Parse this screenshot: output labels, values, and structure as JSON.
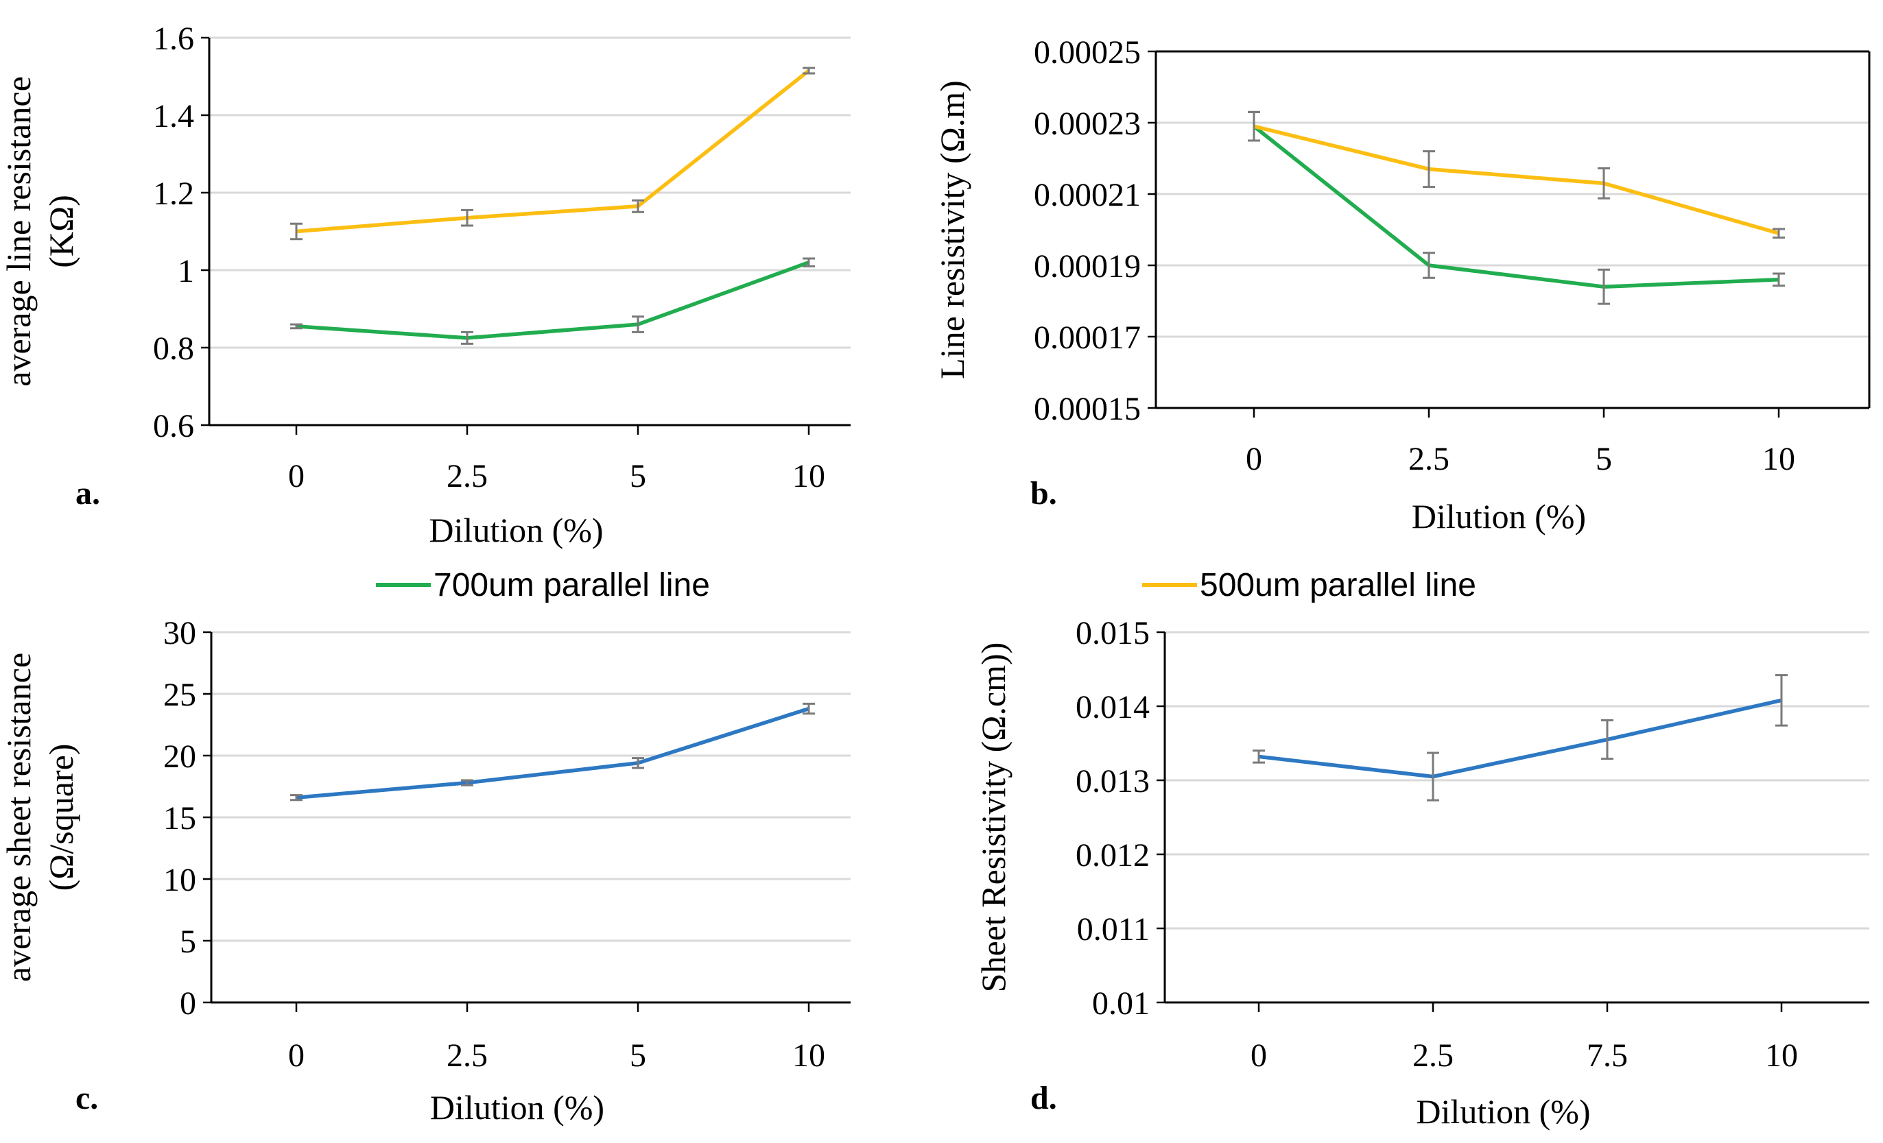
{
  "colors": {
    "green": "#21ad4f",
    "yellow": "#fcbe12",
    "blue": "#2d78c3",
    "grid": "#d9d9d9",
    "axis": "#000000",
    "err": "#7a7a7a"
  },
  "legend": [
    {
      "label": "700um parallel line",
      "color": "#21ad4f"
    },
    {
      "label": "500um parallel line",
      "color": "#fcbe12"
    }
  ],
  "chart_data": [
    {
      "id": "a",
      "panel_label": "a.",
      "type": "line",
      "categories": [
        "0",
        "2.5",
        "5",
        "10"
      ],
      "xlabel": "Dilution (%)",
      "ylabel_lines": [
        "average line resistance",
        "(KΩ)"
      ],
      "ylim": [
        0.6,
        1.6
      ],
      "yticks": [
        "0.6",
        "0.8",
        "1",
        "1.2",
        "1.4",
        "1.6"
      ],
      "grid": true,
      "series": [
        {
          "name": "700um parallel line",
          "color": "#21ad4f",
          "values": [
            0.855,
            0.825,
            0.86,
            1.02
          ],
          "errors": [
            0.005,
            0.015,
            0.02,
            0.01
          ]
        },
        {
          "name": "500um parallel line",
          "color": "#fcbe12",
          "values": [
            1.1,
            1.135,
            1.165,
            1.515
          ],
          "errors": [
            0.02,
            0.02,
            0.015,
            0.007
          ]
        }
      ]
    },
    {
      "id": "b",
      "panel_label": "b.",
      "type": "line",
      "categories": [
        "0",
        "2.5",
        "5",
        "10"
      ],
      "xlabel": "Dilution (%)",
      "ylabel_lines": [
        "Line resistivity (Ω.m)"
      ],
      "ylim": [
        0.00015,
        0.00025
      ],
      "yticks": [
        "0.00015",
        "0.00017",
        "0.00019",
        "0.00021",
        "0.00023",
        "0.00025"
      ],
      "grid": true,
      "series": [
        {
          "name": "700um parallel line",
          "color": "#21ad4f",
          "values": [
            0.000229,
            0.00019,
            0.000184,
            0.000186
          ],
          "errors": [
            4e-06,
            3.5e-06,
            4.8e-06,
            1.7e-06
          ]
        },
        {
          "name": "500um parallel line",
          "color": "#fcbe12",
          "values": [
            0.000229,
            0.000217,
            0.000213,
            0.000199
          ],
          "errors": [
            4e-06,
            5e-06,
            4.2e-06,
            1.2e-06
          ]
        }
      ]
    },
    {
      "id": "c",
      "panel_label": "c.",
      "type": "line",
      "categories": [
        "0",
        "2.5",
        "5",
        "10"
      ],
      "xlabel": "Dilution (%)",
      "ylabel_lines": [
        "average sheet resistance",
        "(Ω/square)"
      ],
      "ylim": [
        0,
        30
      ],
      "yticks": [
        "0",
        "5",
        "10",
        "15",
        "20",
        "25",
        "30"
      ],
      "grid": true,
      "series": [
        {
          "name": "sheet resistance",
          "color": "#2d78c3",
          "values": [
            16.6,
            17.8,
            19.4,
            23.8
          ],
          "errors": [
            0.2,
            0.2,
            0.4,
            0.4
          ]
        }
      ]
    },
    {
      "id": "d",
      "panel_label": "d.",
      "type": "line",
      "categories": [
        "0",
        "2.5",
        "7.5",
        "10"
      ],
      "xlabel": "Dilution (%)",
      "ylabel_lines": [
        "Sheet Resistivity (Ω.cm))"
      ],
      "ylim": [
        0.01,
        0.015
      ],
      "yticks": [
        "0.01",
        "0.011",
        "0.012",
        "0.013",
        "0.014",
        "0.015"
      ],
      "grid": true,
      "series": [
        {
          "name": "sheet resistivity",
          "color": "#2d78c3",
          "values": [
            0.01332,
            0.01305,
            0.01355,
            0.01408
          ],
          "errors": [
            8e-05,
            0.00032,
            0.00026,
            0.00034
          ]
        }
      ]
    }
  ]
}
